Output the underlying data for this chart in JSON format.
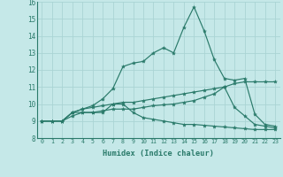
{
  "xlabel": "Humidex (Indice chaleur)",
  "xlim": [
    -0.5,
    23.5
  ],
  "ylim": [
    8,
    16
  ],
  "xticks": [
    0,
    1,
    2,
    3,
    4,
    5,
    6,
    7,
    8,
    9,
    10,
    11,
    12,
    13,
    14,
    15,
    16,
    17,
    18,
    19,
    20,
    21,
    22,
    23
  ],
  "yticks": [
    8,
    9,
    10,
    11,
    12,
    13,
    14,
    15,
    16
  ],
  "bg_color": "#c5e8e8",
  "grid_color": "#aad4d4",
  "line_color": "#2a7a6a",
  "series": [
    [
      9.0,
      9.0,
      9.0,
      9.5,
      9.5,
      9.5,
      9.5,
      10.0,
      10.0,
      9.5,
      9.2,
      9.1,
      9.0,
      8.9,
      8.8,
      8.8,
      8.75,
      8.7,
      8.65,
      8.6,
      8.55,
      8.5,
      8.5,
      8.5
    ],
    [
      9.0,
      9.0,
      9.0,
      9.3,
      9.5,
      9.5,
      9.6,
      9.7,
      9.7,
      9.7,
      9.8,
      9.9,
      9.95,
      10.0,
      10.1,
      10.2,
      10.4,
      10.6,
      11.0,
      11.2,
      11.3,
      11.3,
      11.3,
      11.3
    ],
    [
      9.0,
      9.0,
      9.0,
      9.5,
      9.7,
      9.8,
      9.9,
      10.0,
      10.1,
      10.1,
      10.2,
      10.3,
      10.4,
      10.5,
      10.6,
      10.7,
      10.8,
      10.9,
      11.0,
      9.8,
      9.3,
      8.8,
      8.7,
      8.6
    ],
    [
      9.0,
      9.0,
      9.0,
      9.5,
      9.7,
      9.9,
      10.3,
      10.9,
      12.2,
      12.4,
      12.5,
      13.0,
      13.3,
      13.0,
      14.5,
      15.7,
      14.3,
      12.6,
      11.5,
      11.4,
      11.5,
      9.4,
      8.8,
      8.7
    ]
  ]
}
